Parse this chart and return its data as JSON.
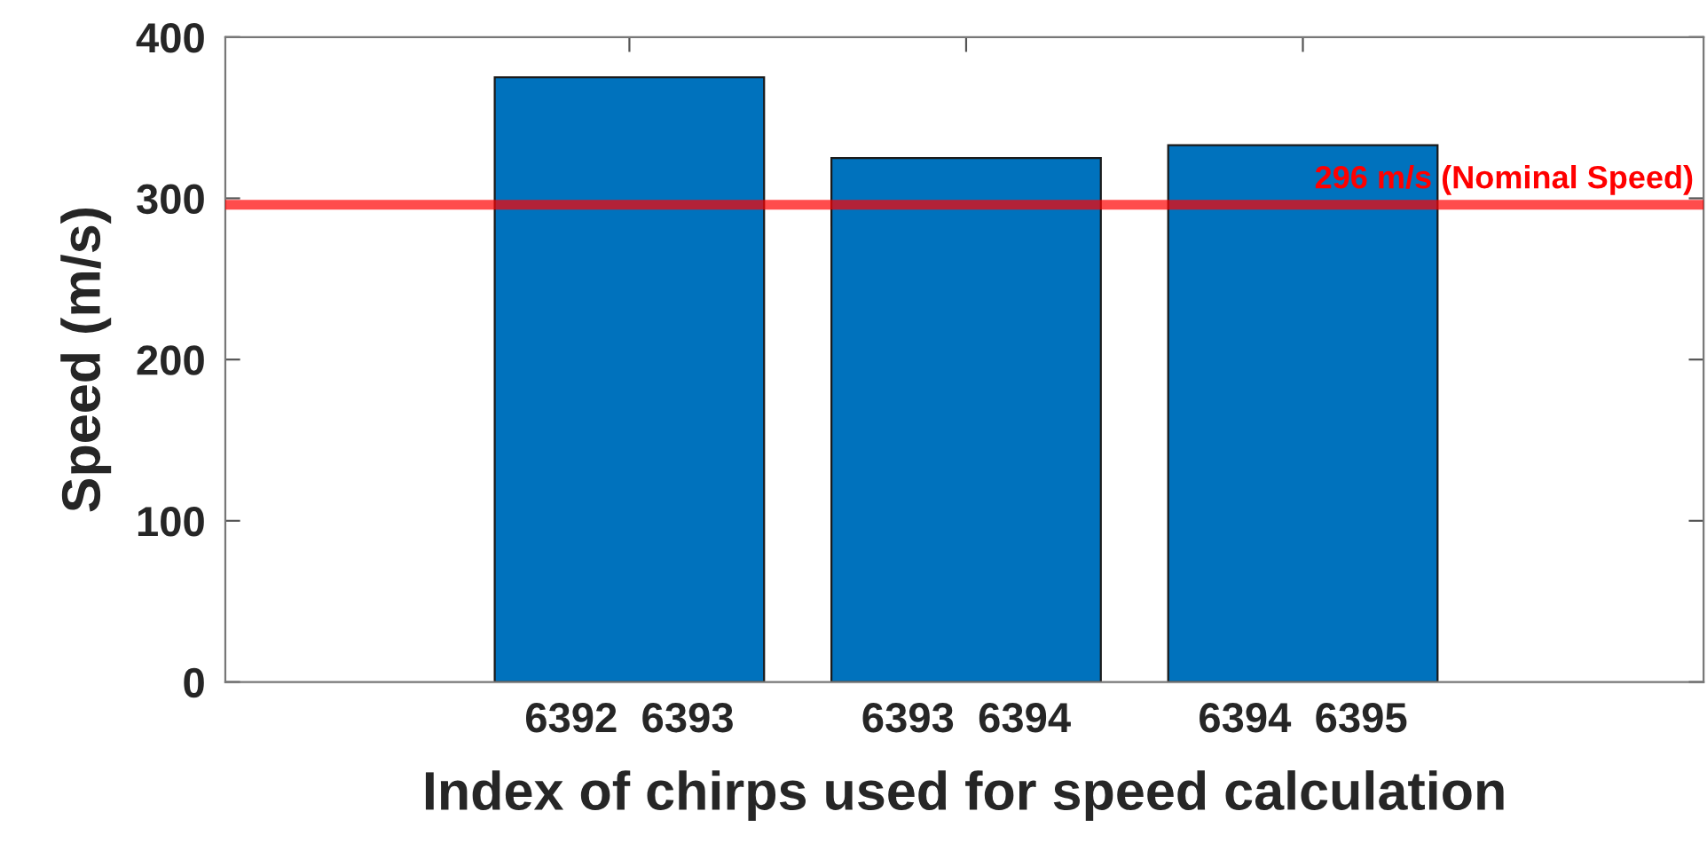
{
  "chart_data": {
    "type": "bar",
    "xlabel": "Index of chirps used for speed calculation",
    "ylabel": "Speed (m/s)",
    "categories": [
      "6392  6393",
      "6393  6394",
      "6394  6395"
    ],
    "values": [
      375,
      325,
      333
    ],
    "color": "#0072bd",
    "ylim": [
      0,
      400
    ],
    "yticks": [
      0,
      100,
      200,
      300,
      400
    ],
    "grid": false,
    "ref_lines": [
      {
        "axis": "y",
        "value": 296,
        "label": "296 m/s (Nominal Speed)",
        "color": "#ff0000"
      }
    ]
  }
}
